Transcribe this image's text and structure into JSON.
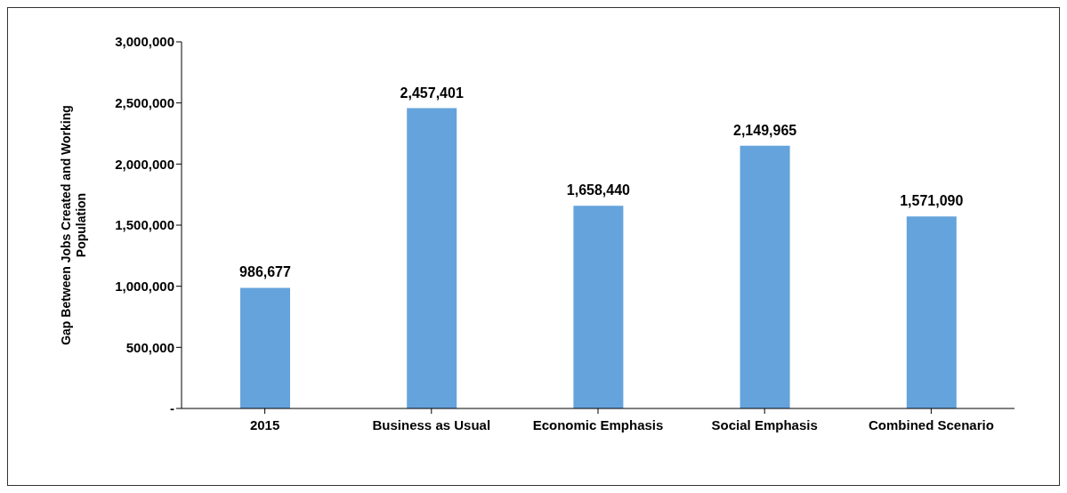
{
  "chart_data": {
    "type": "bar",
    "ylabel": "Gap Between Jobs Created and Working Population",
    "categories": [
      "2015",
      "Business as Usual",
      "Economic Emphasis",
      "Social Emphasis",
      "Combined Scenario"
    ],
    "values": [
      986677,
      2457401,
      1658440,
      2149965,
      1571090
    ],
    "color": "#65a3dc",
    "ylim": [
      0,
      3000000
    ],
    "yticks": [
      {
        "value": 0,
        "label": "-"
      },
      {
        "value": 500000,
        "label": "500,000"
      },
      {
        "value": 1000000,
        "label": "1,000,000"
      },
      {
        "value": 1500000,
        "label": "1,500,000"
      },
      {
        "value": 2000000,
        "label": "2,000,000"
      },
      {
        "value": 2500000,
        "label": "2,500,000"
      },
      {
        "value": 3000000,
        "label": "3,000,000"
      }
    ],
    "value_labels": [
      "986,677",
      "2,457,401",
      "1,658,440",
      "2,149,965",
      "1,571,090"
    ],
    "grid": false,
    "legend": false
  }
}
